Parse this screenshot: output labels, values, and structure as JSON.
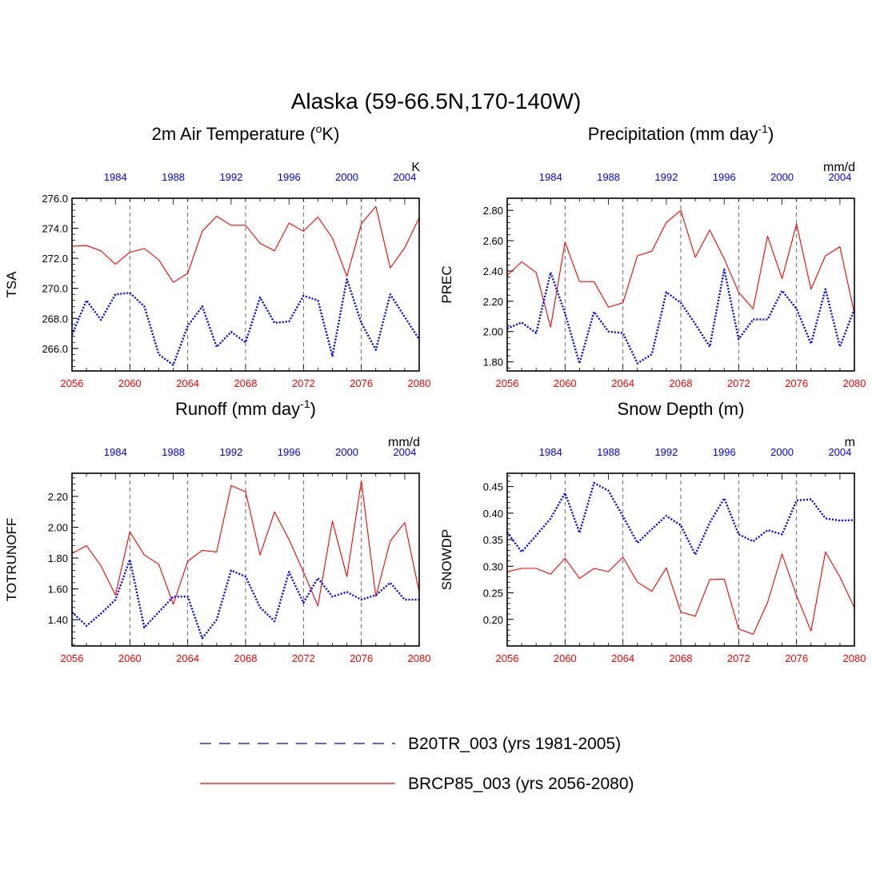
{
  "figure_title": "Alaska (59-66.5N,170-140W)",
  "colors": {
    "future": "#ff0000",
    "historical": "#0000ff",
    "axis": "#000000",
    "grid": "#444444"
  },
  "legend": {
    "historical_label": "B20TR_003 (yrs 1981-2005)",
    "future_label": "BRCP85_003 (yrs 2056-2080)"
  },
  "chart_data": [
    {
      "type": "line",
      "title": "2m Air Temperature (",
      "title_super": "o",
      "title_tail": "K)",
      "ylabel": "TSA",
      "units": "K",
      "ylim": [
        264.5,
        276.0
      ],
      "yticks": [
        266.0,
        268.0,
        270.0,
        272.0,
        274.0,
        276.0
      ],
      "ytick_labels": [
        "266.0",
        "268.0",
        "270.0",
        "272.0",
        "274.0",
        "276.0"
      ],
      "xlim_bottom": [
        2056,
        2080
      ],
      "xticks_bottom": [
        "2056",
        "2060",
        "2064",
        "2068",
        "2072",
        "2076",
        "2080"
      ],
      "xlim_top": [
        1981,
        2005
      ],
      "xticks_top": [
        "1984",
        "1988",
        "1992",
        "1996",
        "2000",
        "2004"
      ],
      "series": [
        {
          "name": "BRCP85_003",
          "values": [
            272.8,
            272.85,
            272.5,
            271.6,
            272.4,
            272.65,
            271.9,
            270.4,
            271.0,
            273.8,
            274.8,
            274.2,
            274.2,
            273.0,
            272.5,
            274.35,
            273.8,
            274.75,
            273.35,
            270.8,
            274.3,
            275.45,
            271.35,
            272.7,
            274.7
          ]
        },
        {
          "name": "B20TR_003",
          "values": [
            266.9,
            269.2,
            267.9,
            269.6,
            269.7,
            268.8,
            265.6,
            264.9,
            267.5,
            268.8,
            266.1,
            267.1,
            266.4,
            269.4,
            267.7,
            267.8,
            269.5,
            269.2,
            265.5,
            270.6,
            267.7,
            265.9,
            269.6,
            268.1,
            266.6
          ]
        }
      ]
    },
    {
      "type": "line",
      "title": "Precipitation (mm day",
      "title_super": "-1",
      "title_tail": ")",
      "ylabel": "PREC",
      "units": "mm/d",
      "ylim": [
        1.74,
        2.88
      ],
      "yticks": [
        1.8,
        2.0,
        2.2,
        2.4,
        2.6,
        2.8
      ],
      "ytick_labels": [
        "1.80",
        "2.00",
        "2.20",
        "2.40",
        "2.60",
        "2.80"
      ],
      "xlim_bottom": [
        2056,
        2080
      ],
      "xticks_bottom": [
        "2056",
        "2060",
        "2064",
        "2068",
        "2072",
        "2076",
        "2080"
      ],
      "xlim_top": [
        1981,
        2005
      ],
      "xticks_top": [
        "1984",
        "1988",
        "1992",
        "1996",
        "2000",
        "2004"
      ],
      "series": [
        {
          "name": "BRCP85_003",
          "values": [
            2.37,
            2.46,
            2.39,
            2.03,
            2.59,
            2.33,
            2.33,
            2.16,
            2.19,
            2.5,
            2.53,
            2.72,
            2.8,
            2.49,
            2.67,
            2.48,
            2.26,
            2.15,
            2.63,
            2.35,
            2.71,
            2.28,
            2.5,
            2.56,
            2.12
          ]
        },
        {
          "name": "B20TR_003",
          "values": [
            2.02,
            2.06,
            1.99,
            2.39,
            2.12,
            1.79,
            2.13,
            2.0,
            1.99,
            1.79,
            1.85,
            2.26,
            2.19,
            2.05,
            1.9,
            2.41,
            1.95,
            2.08,
            2.08,
            2.27,
            2.15,
            1.92,
            2.28,
            1.9,
            2.15
          ]
        }
      ]
    },
    {
      "type": "line",
      "title": "Runoff (mm day",
      "title_super": "-1",
      "title_tail": ")",
      "ylabel": "TOTRUNOFF",
      "units": "mm/d",
      "ylim": [
        1.23,
        2.35
      ],
      "yticks": [
        1.4,
        1.6,
        1.8,
        2.0,
        2.2
      ],
      "ytick_labels": [
        "1.40",
        "1.60",
        "1.80",
        "2.00",
        "2.20"
      ],
      "xlim_bottom": [
        2056,
        2080
      ],
      "xticks_bottom": [
        "2056",
        "2060",
        "2064",
        "2068",
        "2072",
        "2076",
        "2080"
      ],
      "xlim_top": [
        1981,
        2005
      ],
      "xticks_top": [
        "1984",
        "1988",
        "1992",
        "1996",
        "2000",
        "2004"
      ],
      "series": [
        {
          "name": "BRCP85_003",
          "values": [
            1.83,
            1.88,
            1.75,
            1.56,
            1.97,
            1.82,
            1.76,
            1.5,
            1.78,
            1.85,
            1.84,
            2.27,
            2.23,
            1.82,
            2.1,
            1.92,
            1.71,
            1.49,
            2.04,
            1.68,
            2.3,
            1.55,
            1.91,
            2.03,
            1.58
          ]
        },
        {
          "name": "B20TR_003",
          "values": [
            1.45,
            1.36,
            1.44,
            1.53,
            1.79,
            1.35,
            1.45,
            1.55,
            1.55,
            1.28,
            1.4,
            1.72,
            1.68,
            1.48,
            1.39,
            1.71,
            1.51,
            1.67,
            1.55,
            1.58,
            1.53,
            1.56,
            1.64,
            1.53,
            1.53
          ]
        }
      ]
    },
    {
      "type": "line",
      "title": "Snow Depth (m)",
      "title_super": "",
      "title_tail": "",
      "ylabel": "SNOWDP",
      "units": "m",
      "ylim": [
        0.15,
        0.475
      ],
      "yticks": [
        0.2,
        0.25,
        0.3,
        0.35,
        0.4,
        0.45
      ],
      "ytick_labels": [
        "0.20",
        "0.25",
        "0.30",
        "0.35",
        "0.40",
        "0.45"
      ],
      "xlim_bottom": [
        2056,
        2080
      ],
      "xticks_bottom": [
        "2056",
        "2060",
        "2064",
        "2068",
        "2072",
        "2076",
        "2080"
      ],
      "xlim_top": [
        1981,
        2005
      ],
      "xticks_top": [
        "1984",
        "1988",
        "1992",
        "1996",
        "2000",
        "2004"
      ],
      "series": [
        {
          "name": "BRCP85_003",
          "values": [
            0.29,
            0.296,
            0.296,
            0.285,
            0.315,
            0.277,
            0.296,
            0.29,
            0.317,
            0.27,
            0.253,
            0.297,
            0.214,
            0.206,
            0.275,
            0.276,
            0.182,
            0.172,
            0.232,
            0.323,
            0.245,
            0.178,
            0.327,
            0.28,
            0.222
          ]
        },
        {
          "name": "B20TR_003",
          "values": [
            0.364,
            0.327,
            0.358,
            0.39,
            0.438,
            0.363,
            0.457,
            0.442,
            0.394,
            0.344,
            0.37,
            0.395,
            0.377,
            0.322,
            0.382,
            0.428,
            0.36,
            0.347,
            0.368,
            0.36,
            0.424,
            0.426,
            0.39,
            0.386,
            0.387
          ]
        }
      ]
    }
  ]
}
